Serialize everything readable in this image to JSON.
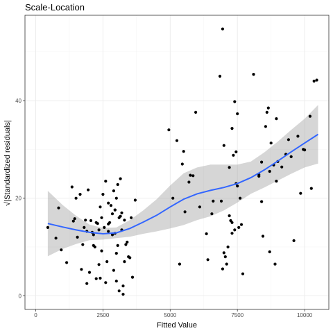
{
  "chart_data": {
    "type": "scatter",
    "title": "Scale-Location",
    "xlabel": "Fitted Value",
    "ylabel": "√|Standardized residuals|",
    "xlim": [
      0,
      10500
    ],
    "ylim": [
      0,
      55
    ],
    "x_ticks": [
      0,
      2500,
      5000,
      7500,
      10000
    ],
    "y_ticks": [
      0,
      20,
      40
    ],
    "grid": true,
    "colors": {
      "points": "#000000",
      "smooth_line": "#3366ff",
      "confidence_band": "#999999",
      "grid": "#ebebeb",
      "border": "#333333"
    },
    "points": [
      [
        450,
        14
      ],
      [
        750,
        11.8
      ],
      [
        850,
        18
      ],
      [
        950,
        9.4
      ],
      [
        1150,
        6.8
      ],
      [
        1350,
        22.3
      ],
      [
        1400,
        15.3
      ],
      [
        1450,
        15.8
      ],
      [
        1500,
        20
      ],
      [
        1550,
        12
      ],
      [
        1650,
        20.8
      ],
      [
        1700,
        5.4
      ],
      [
        1750,
        10.5
      ],
      [
        1800,
        14
      ],
      [
        1850,
        15.5
      ],
      [
        1900,
        2.5
      ],
      [
        1950,
        21.7
      ],
      [
        2000,
        4.8
      ],
      [
        2050,
        15.4
      ],
      [
        2100,
        13
      ],
      [
        2150,
        12.5
      ],
      [
        2200,
        10
      ],
      [
        2250,
        15
      ],
      [
        2300,
        14.8
      ],
      [
        2350,
        6.4
      ],
      [
        2400,
        3.6
      ],
      [
        2450,
        9.2
      ],
      [
        2500,
        20.8
      ],
      [
        2550,
        14
      ],
      [
        2600,
        23.5
      ],
      [
        2650,
        7
      ],
      [
        2700,
        19
      ],
      [
        2750,
        15
      ],
      [
        2800,
        18.5
      ],
      [
        2850,
        12.5
      ],
      [
        2900,
        21.5
      ],
      [
        2950,
        17.6
      ],
      [
        3000,
        3
      ],
      [
        3050,
        22.8
      ],
      [
        3100,
        16
      ],
      [
        3150,
        24
      ],
      [
        3200,
        13.5
      ],
      [
        3250,
        2
      ],
      [
        3300,
        15.5
      ],
      [
        3350,
        10.5
      ],
      [
        3400,
        11
      ],
      [
        3450,
        8
      ],
      [
        3500,
        7.8
      ],
      [
        3550,
        16
      ],
      [
        3600,
        3.8
      ],
      [
        3700,
        19.6
      ],
      [
        2900,
        5.2
      ],
      [
        2450,
        16
      ],
      [
        2700,
        13.2
      ],
      [
        2850,
        16.8
      ],
      [
        3000,
        8.7
      ],
      [
        3200,
        17
      ],
      [
        3050,
        10.3
      ],
      [
        2250,
        3.5
      ],
      [
        3100,
        1
      ],
      [
        2350,
        13.5
      ],
      [
        2150,
        10.3
      ],
      [
        1900,
        13.2
      ],
      [
        2700,
        14.7
      ],
      [
        2950,
        17.6
      ],
      [
        2600,
        2.7
      ],
      [
        3250,
        0.3
      ],
      [
        3150,
        16.3
      ],
      [
        2400,
        18.2
      ],
      [
        3000,
        20
      ],
      [
        2950,
        12.8
      ],
      [
        3300,
        7
      ],
      [
        4950,
        34
      ],
      [
        5100,
        20
      ],
      [
        5250,
        31.8
      ],
      [
        5350,
        6.5
      ],
      [
        5450,
        27
      ],
      [
        5500,
        29.6
      ],
      [
        5550,
        17.2
      ],
      [
        5700,
        23.3
      ],
      [
        5750,
        24.7
      ],
      [
        5850,
        24.6
      ],
      [
        5950,
        37.6
      ],
      [
        6100,
        18.2
      ],
      [
        6350,
        12.7
      ],
      [
        6400,
        7.4
      ],
      [
        6550,
        16.8
      ],
      [
        6600,
        19.4
      ],
      [
        6850,
        45
      ],
      [
        6900,
        19.4
      ],
      [
        6950,
        54.7
      ],
      [
        7000,
        30.8
      ],
      [
        7100,
        6.5
      ],
      [
        7200,
        26.3
      ],
      [
        7250,
        15.4
      ],
      [
        7300,
        12.8
      ],
      [
        7350,
        28.8
      ],
      [
        7400,
        39.8
      ],
      [
        7450,
        29.5
      ],
      [
        7500,
        37.3
      ],
      [
        7550,
        14
      ],
      [
        7600,
        20
      ],
      [
        7650,
        14.6
      ],
      [
        7700,
        4.5
      ],
      [
        7200,
        16.4
      ],
      [
        7300,
        15
      ],
      [
        7400,
        13.5
      ],
      [
        7050,
        8
      ],
      [
        6950,
        5.5
      ],
      [
        7000,
        8.8
      ],
      [
        7500,
        22.5
      ],
      [
        7300,
        34.3
      ],
      [
        7450,
        23
      ],
      [
        7150,
        10
      ],
      [
        8100,
        45.4
      ],
      [
        8300,
        24.5
      ],
      [
        8400,
        27.4
      ],
      [
        8450,
        12.2
      ],
      [
        8550,
        34.7
      ],
      [
        8600,
        37.6
      ],
      [
        8650,
        38.5
      ],
      [
        8700,
        9
      ],
      [
        8750,
        31.3
      ],
      [
        8850,
        26.8
      ],
      [
        8900,
        6.5
      ],
      [
        8950,
        36.3
      ],
      [
        9000,
        27.5
      ],
      [
        9150,
        26.4
      ],
      [
        9300,
        29
      ],
      [
        9400,
        32
      ],
      [
        9500,
        28.5
      ],
      [
        9600,
        11.3
      ],
      [
        9750,
        32.7
      ],
      [
        9850,
        21
      ],
      [
        9950,
        30
      ],
      [
        10000,
        29.9
      ],
      [
        10200,
        36.8
      ],
      [
        10250,
        22
      ],
      [
        10350,
        44
      ],
      [
        10450,
        44.2
      ],
      [
        8950,
        23.5
      ],
      [
        8700,
        25.5
      ],
      [
        8400,
        19.3
      ],
      [
        8300,
        24.8
      ]
    ],
    "smooth": {
      "x": [
        450,
        1000,
        1500,
        2000,
        2500,
        3000,
        3500,
        4000,
        4500,
        5000,
        5500,
        6000,
        6500,
        7000,
        7500,
        8000,
        8500,
        9000,
        9500,
        10000,
        10500
      ],
      "y": [
        14.8,
        14.1,
        13.5,
        13,
        12.7,
        12.9,
        13.8,
        15.1,
        16.5,
        18.2,
        19.8,
        20.9,
        21.6,
        22.2,
        23,
        24.2,
        25.8,
        27.6,
        29.5,
        31.3,
        33.1
      ],
      "lower": [
        8.1,
        9.6,
        10.6,
        11.4,
        11.5,
        11.8,
        12.1,
        12.7,
        13.2,
        13.8,
        14.5,
        15.5,
        16.3,
        17.5,
        19.1,
        20.9,
        22.2,
        23.6,
        25,
        26.3,
        27.1
      ],
      "upper": [
        21.5,
        18.6,
        16.4,
        14.6,
        13.9,
        14,
        15.5,
        17.5,
        19.8,
        22.6,
        25.1,
        26.3,
        26.9,
        26.9,
        26.9,
        27.5,
        29.4,
        31.6,
        34,
        36.3,
        39.1
      ]
    }
  }
}
